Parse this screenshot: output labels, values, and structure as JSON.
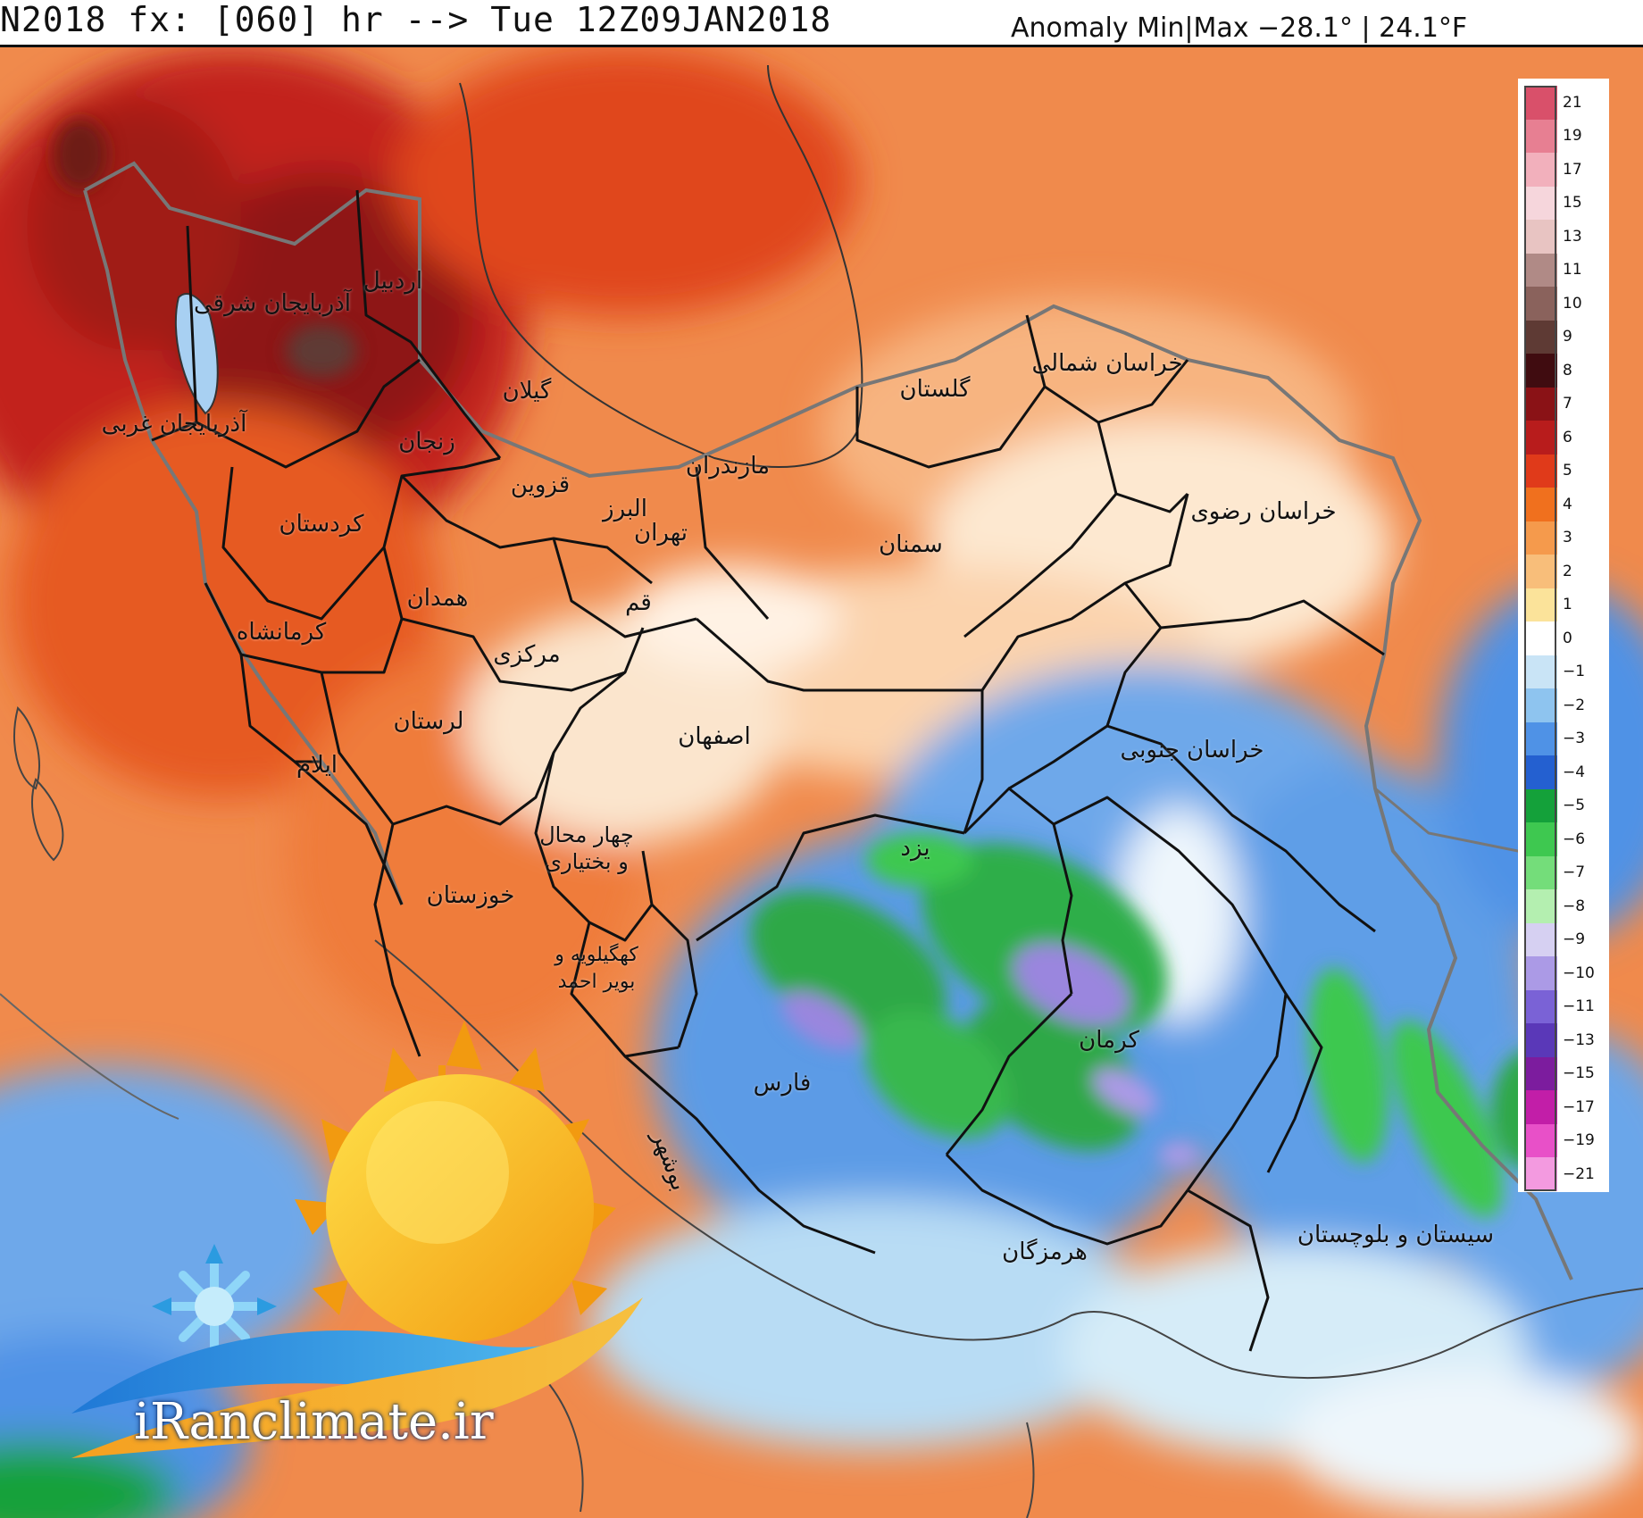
{
  "header": {
    "title_left": "N2018 fx: [060] hr --> Tue 12Z09JAN2018",
    "title_right": "Anomaly Min|Max −28.1° | 24.1°F"
  },
  "colorbar": {
    "ticks": [
      "21",
      "19",
      "17",
      "15",
      "13",
      "11",
      "10",
      "9",
      "8",
      "7",
      "6",
      "5",
      "4",
      "3",
      "2",
      "1",
      "0",
      "−1",
      "−2",
      "−3",
      "−4",
      "−5",
      "−6",
      "−7",
      "−8",
      "−9",
      "−10",
      "−11",
      "−13",
      "−15",
      "−17",
      "−19",
      "−21"
    ],
    "colors": [
      "#d9506a",
      "#e77f92",
      "#f2b0bc",
      "#f6d6dc",
      "#e8c4c2",
      "#b08a86",
      "#8a625c",
      "#5e3a34",
      "#400c10",
      "#8a1216",
      "#b81c1c",
      "#e03a1a",
      "#f0701e",
      "#f59a4c",
      "#f8be7a",
      "#fbe39a",
      "#ffffff",
      "#c9e4f6",
      "#8ec4ef",
      "#4f92e6",
      "#2460d0",
      "#14a13a",
      "#3ec850",
      "#74dd7a",
      "#b4efb0",
      "#d6d0f2",
      "#ab9ae6",
      "#7a62d6",
      "#5a38b8",
      "#7c1c9e",
      "#c21ea8",
      "#e850c8",
      "#f39ae0"
    ]
  },
  "provinces": [
    {
      "id": "east-azerbaijan",
      "label": "آذربایجان شرقی"
    },
    {
      "id": "ardabil",
      "label": "اردبیل"
    },
    {
      "id": "west-azerbaijan",
      "label": "آذربایجان غربی"
    },
    {
      "id": "gilan",
      "label": "گیلان"
    },
    {
      "id": "zanjan",
      "label": "زنجان"
    },
    {
      "id": "qazvin",
      "label": "قزوین"
    },
    {
      "id": "alborz",
      "label": "البرز"
    },
    {
      "id": "tehran",
      "label": "تهران"
    },
    {
      "id": "mazandaran",
      "label": "مازندران"
    },
    {
      "id": "golestan",
      "label": "گلستان"
    },
    {
      "id": "north-khorasan",
      "label": "خراسان شمالی"
    },
    {
      "id": "razavi-khorasan",
      "label": "خراسان رضوی"
    },
    {
      "id": "semnan",
      "label": "سمنان"
    },
    {
      "id": "kurdistan",
      "label": "کردستان"
    },
    {
      "id": "hamadan",
      "label": "همدان"
    },
    {
      "id": "qom",
      "label": "قم"
    },
    {
      "id": "kermanshah",
      "label": "کرمانشاه"
    },
    {
      "id": "markazi",
      "label": "مرکزی"
    },
    {
      "id": "lorestan",
      "label": "لرستان"
    },
    {
      "id": "ilam",
      "label": "ایلام"
    },
    {
      "id": "isfahan",
      "label": "اصفهان"
    },
    {
      "id": "south-khorasan",
      "label": "خراسان جنوبی"
    },
    {
      "id": "chaharmahal",
      "label": "چهار محال و بختیاری"
    },
    {
      "id": "yazd",
      "label": "یزد"
    },
    {
      "id": "khuzestan",
      "label": "خوزستان"
    },
    {
      "id": "kohgiluyeh",
      "label": "کهگیلویه و بویر احمد"
    },
    {
      "id": "kerman",
      "label": "کرمان"
    },
    {
      "id": "fars",
      "label": "فارس"
    },
    {
      "id": "bushehr",
      "label": "بوشهر"
    },
    {
      "id": "hormozgan",
      "label": "هرمزگان"
    },
    {
      "id": "sistan-baluchestan",
      "label": "سیستان و بلوچستان"
    }
  ],
  "watermark": "iRanclimate.ir"
}
